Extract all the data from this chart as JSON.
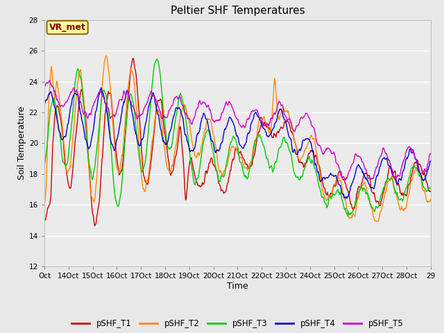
{
  "title": "Peltier SHF Temperatures",
  "xlabel": "Time",
  "ylabel": "Soil Temperature",
  "ylim": [
    12,
    28
  ],
  "xlim": [
    0,
    1
  ],
  "xtick_labels": [
    "Oct",
    "14Oct",
    "15Oct",
    "16Oct",
    "17Oct",
    "18Oct",
    "19Oct",
    "20Oct",
    "21Oct",
    "22Oct",
    "23Oct",
    "24Oct",
    "25Oct",
    "26Oct",
    "27Oct",
    "28Oct",
    "29"
  ],
  "background_color": "#e8e8e8",
  "plot_bg_color": "#ebebeb",
  "annotation_text": "VR_met",
  "annotation_bg": "#ffff99",
  "annotation_border": "#996600",
  "annotation_text_color": "#880000",
  "series_colors": {
    "pSHF_T1": "#cc0000",
    "pSHF_T2": "#ff8800",
    "pSHF_T3": "#00cc00",
    "pSHF_T4": "#0000cc",
    "pSHF_T5": "#cc00cc"
  },
  "legend_labels": [
    "pSHF_T1",
    "pSHF_T2",
    "pSHF_T3",
    "pSHF_T4",
    "pSHF_T5"
  ],
  "yticks": [
    12,
    14,
    16,
    18,
    20,
    22,
    24,
    26,
    28
  ],
  "grid_color": "#ffffff",
  "title_fontsize": 11,
  "axis_label_fontsize": 9,
  "tick_fontsize": 7.5,
  "linewidth": 1.0
}
